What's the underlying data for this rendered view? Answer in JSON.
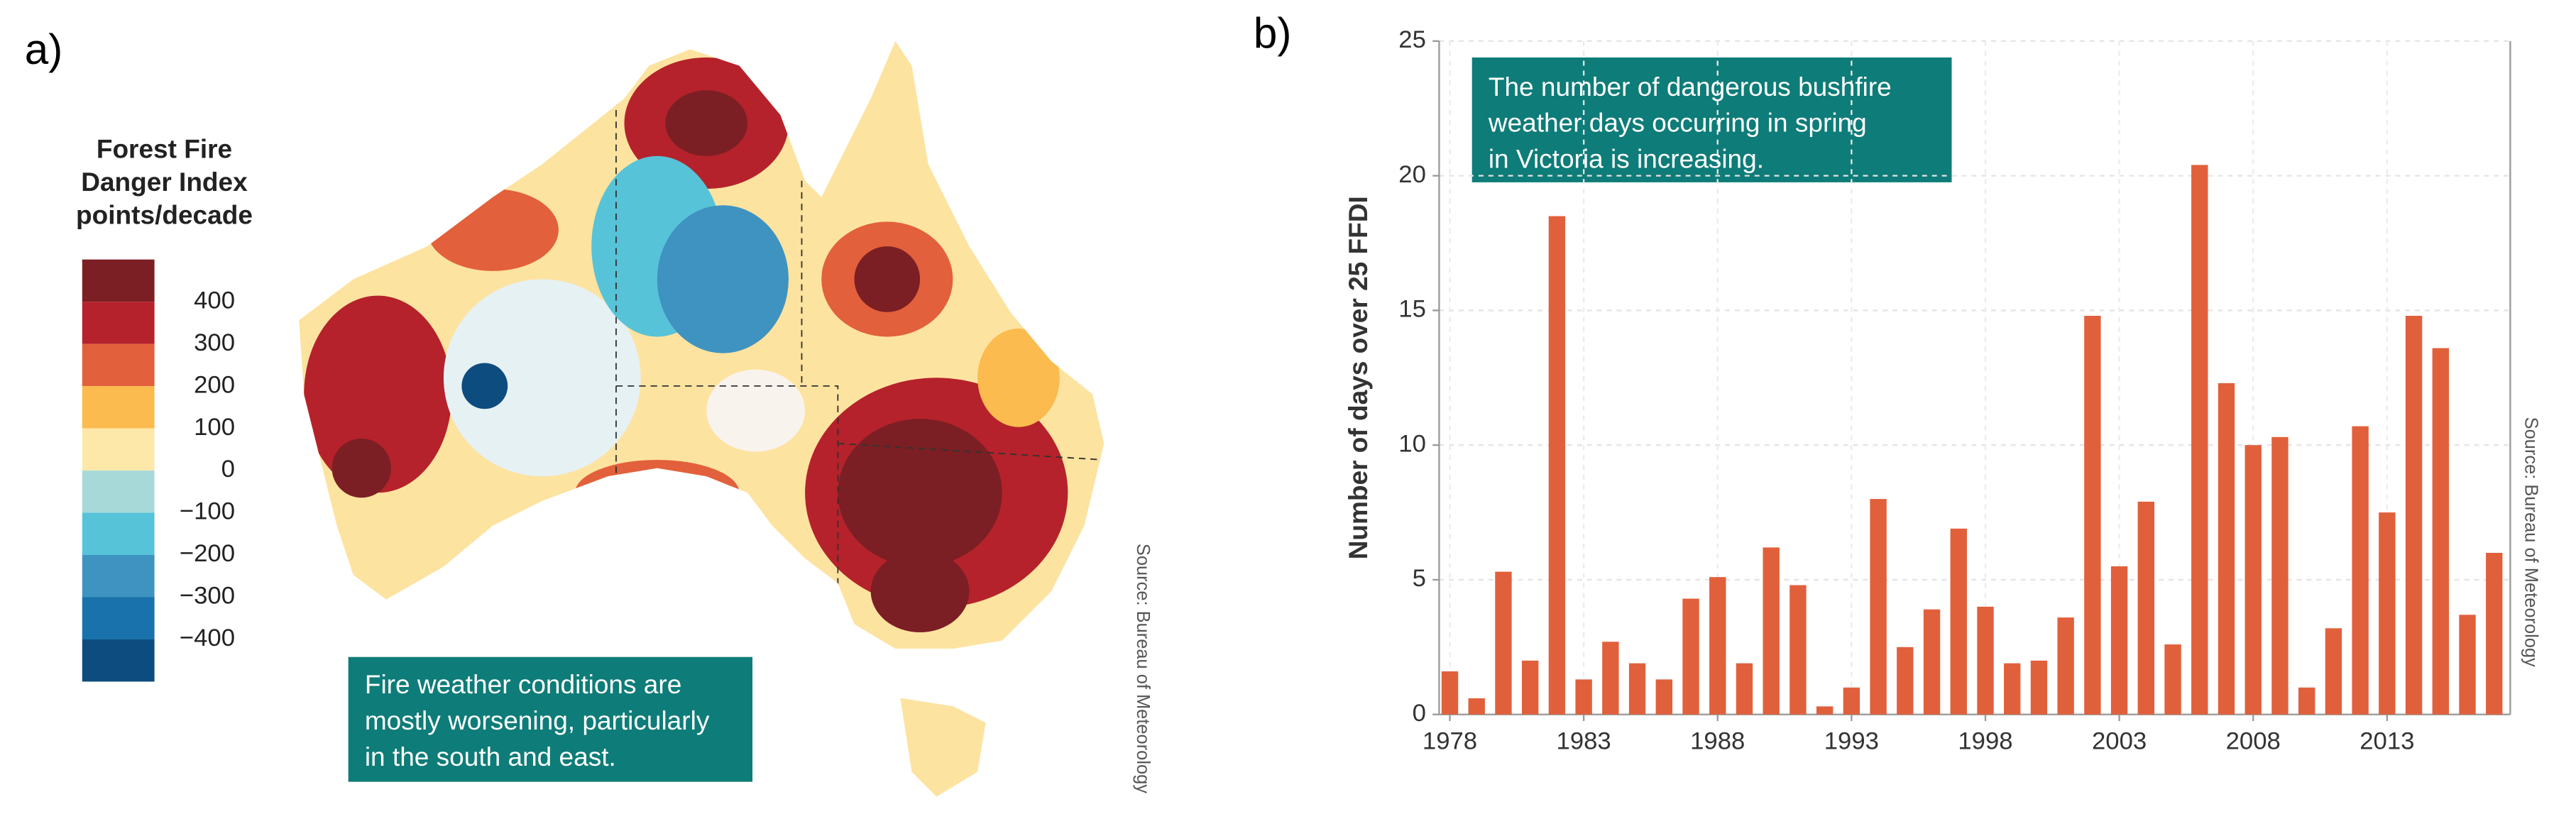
{
  "panel_a": {
    "label": "a)",
    "legend": {
      "title": [
        "Forest Fire",
        "Danger Index",
        "points/decade"
      ],
      "colors": [
        "#7b1f24",
        "#b5222b",
        "#e2603b",
        "#fbbb4f",
        "#fde8aa",
        "#a8d9d9",
        "#57c3d8",
        "#3f93c0",
        "#1a72ac",
        "#0d4c7f"
      ],
      "labels": [
        "400",
        "300",
        "200",
        "100",
        "0",
        "−100",
        "−200",
        "−300",
        "−400"
      ]
    },
    "annotation": [
      "Fire weather conditions are",
      "mostly worsening, particularly",
      "in the south and east."
    ],
    "source": "Source: Bureau of Meteorology"
  },
  "chart_data": {
    "type": "bar",
    "panel_label": "b)",
    "annotation": [
      "The number of dangerous bushfire",
      "weather days occurring in spring",
      "in Victoria is increasing."
    ],
    "y_label": "Number of days over 25 FFDI",
    "source": "Source: Bureau of Meteorology",
    "x": [
      1978,
      1979,
      1980,
      1981,
      1982,
      1983,
      1984,
      1985,
      1986,
      1987,
      1988,
      1989,
      1990,
      1991,
      1992,
      1993,
      1994,
      1995,
      1996,
      1997,
      1998,
      1999,
      2000,
      2001,
      2002,
      2003,
      2004,
      2005,
      2006,
      2007,
      2008,
      2009,
      2010,
      2011,
      2012,
      2013,
      2014,
      2015,
      2016,
      2017
    ],
    "values": [
      1.6,
      0.6,
      5.3,
      2.0,
      18.5,
      1.3,
      2.7,
      1.9,
      1.3,
      4.3,
      5.1,
      1.9,
      6.2,
      4.8,
      0.3,
      1.0,
      8.0,
      2.5,
      3.9,
      6.9,
      4.0,
      1.9,
      2.0,
      3.6,
      14.8,
      5.5,
      7.9,
      2.6,
      20.4,
      12.3,
      10.0,
      10.3,
      1.0,
      3.2,
      10.7,
      7.5,
      14.8,
      13.6,
      3.7,
      6.0
    ],
    "color": "#e1603c",
    "xlim": [
      1977.6,
      2017.6
    ],
    "xticks": [
      1978,
      1983,
      1988,
      1993,
      1998,
      2003,
      2008,
      2013
    ],
    "ylim": [
      0,
      25
    ],
    "yticks": [
      0,
      5,
      10,
      15,
      20,
      25
    ],
    "grid": true
  }
}
